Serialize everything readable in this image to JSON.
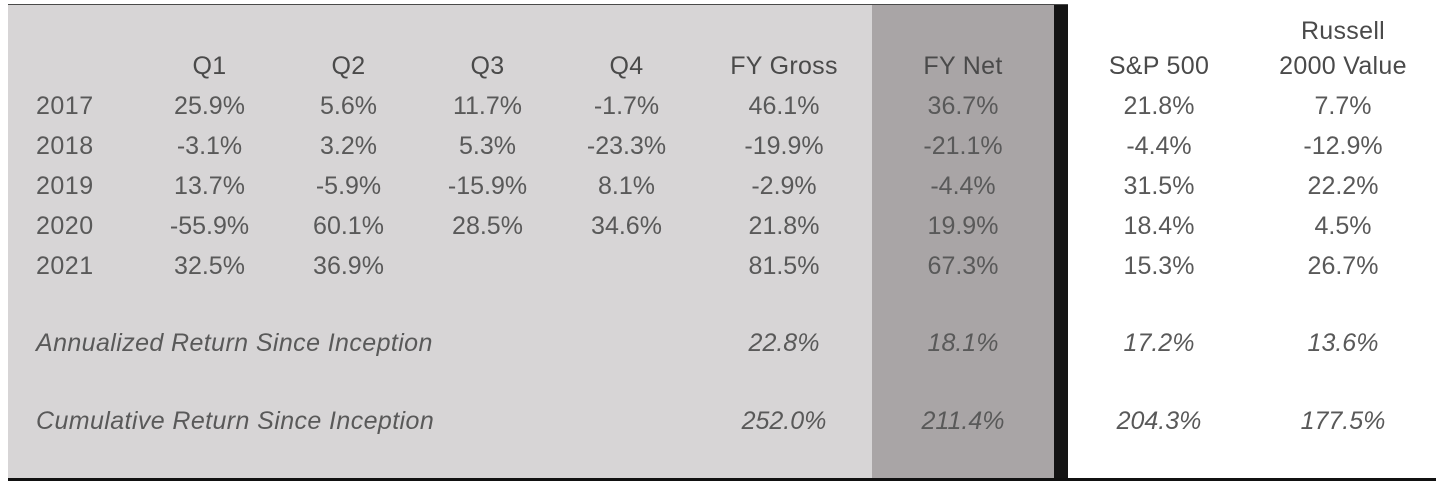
{
  "table": {
    "headers": {
      "q1": "Q1",
      "q2": "Q2",
      "q3": "Q3",
      "q4": "Q4",
      "fy_gross": "FY Gross",
      "fy_net": "FY Net",
      "sp500": "S&P 500",
      "russell_line1": "Russell",
      "russell_line2": "2000 Value"
    },
    "rows": [
      {
        "year": "2017",
        "q1": "25.9%",
        "q2": "5.6%",
        "q3": "11.7%",
        "q4": "-1.7%",
        "fy_gross": "46.1%",
        "fy_net": "36.7%",
        "sp500": "21.8%",
        "russell": "7.7%"
      },
      {
        "year": "2018",
        "q1": "-3.1%",
        "q2": "3.2%",
        "q3": "5.3%",
        "q4": "-23.3%",
        "fy_gross": "-19.9%",
        "fy_net": "-21.1%",
        "sp500": "-4.4%",
        "russell": "-12.9%"
      },
      {
        "year": "2019",
        "q1": "13.7%",
        "q2": "-5.9%",
        "q3": "-15.9%",
        "q4": "8.1%",
        "fy_gross": "-2.9%",
        "fy_net": "-4.4%",
        "sp500": "31.5%",
        "russell": "22.2%"
      },
      {
        "year": "2020",
        "q1": "-55.9%",
        "q2": "60.1%",
        "q3": "28.5%",
        "q4": "34.6%",
        "fy_gross": "21.8%",
        "fy_net": "19.9%",
        "sp500": "18.4%",
        "russell": "4.5%"
      },
      {
        "year": "2021",
        "q1": "32.5%",
        "q2": "36.9%",
        "q3": "",
        "q4": "",
        "fy_gross": "81.5%",
        "fy_net": "67.3%",
        "sp500": "15.3%",
        "russell": "26.7%"
      }
    ],
    "annualized": {
      "label": "Annualized Return Since Inception",
      "fy_gross": "22.8%",
      "fy_net": "18.1%",
      "sp500": "17.2%",
      "russell": "13.6%"
    },
    "cumulative": {
      "label": "Cumulative Return Since Inception",
      "fy_gross": "252.0%",
      "fy_net": "211.4%",
      "sp500": "204.3%",
      "russell": "177.5%"
    }
  },
  "colors": {
    "main_bg": "#d7d5d6",
    "net_bg": "#a9a5a6",
    "divider": "#141414",
    "text": "#595959"
  }
}
